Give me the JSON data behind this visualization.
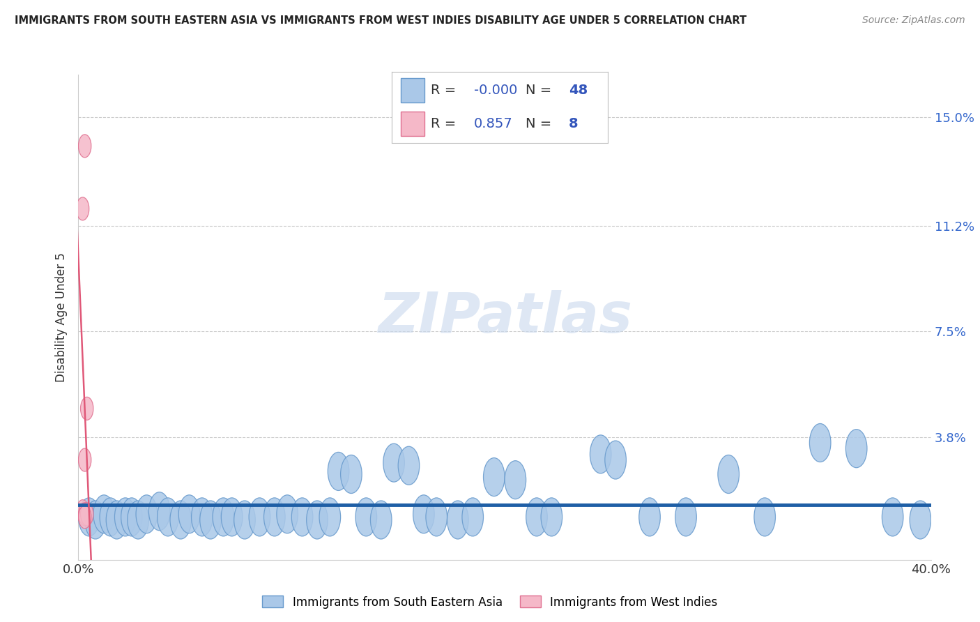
{
  "title": "IMMIGRANTS FROM SOUTH EASTERN ASIA VS IMMIGRANTS FROM WEST INDIES DISABILITY AGE UNDER 5 CORRELATION CHART",
  "source": "Source: ZipAtlas.com",
  "ylabel": "Disability Age Under 5",
  "xlim": [
    0.0,
    0.4
  ],
  "ylim": [
    -0.005,
    0.165
  ],
  "xticks": [
    0.0,
    0.1,
    0.2,
    0.3,
    0.4
  ],
  "xtick_labels": [
    "0.0%",
    "",
    "",
    "",
    "40.0%"
  ],
  "ytick_positions": [
    0.038,
    0.075,
    0.112,
    0.15
  ],
  "ytick_labels": [
    "3.8%",
    "7.5%",
    "11.2%",
    "15.0%"
  ],
  "grid_color": "#cccccc",
  "background_color": "#ffffff",
  "blue_color": "#aac8e8",
  "blue_edge_color": "#6699cc",
  "pink_color": "#f5b8c8",
  "pink_edge_color": "#e07090",
  "line_blue_color": "#1f5fa6",
  "line_pink_color": "#e05878",
  "legend_R_blue": "-0.000",
  "legend_N_blue": "48",
  "legend_R_pink": "0.857",
  "legend_N_pink": "8",
  "watermark": "ZIPatlas",
  "blue_color_legend": "#aac8e8",
  "pink_color_legend": "#f5b8c8",
  "blue_scatter": [
    [
      0.005,
      0.01
    ],
    [
      0.008,
      0.009
    ],
    [
      0.012,
      0.011
    ],
    [
      0.015,
      0.01
    ],
    [
      0.018,
      0.009
    ],
    [
      0.022,
      0.01
    ],
    [
      0.025,
      0.01
    ],
    [
      0.028,
      0.009
    ],
    [
      0.032,
      0.011
    ],
    [
      0.038,
      0.012
    ],
    [
      0.042,
      0.01
    ],
    [
      0.048,
      0.009
    ],
    [
      0.052,
      0.011
    ],
    [
      0.058,
      0.01
    ],
    [
      0.062,
      0.009
    ],
    [
      0.068,
      0.01
    ],
    [
      0.072,
      0.01
    ],
    [
      0.078,
      0.009
    ],
    [
      0.085,
      0.01
    ],
    [
      0.092,
      0.01
    ],
    [
      0.098,
      0.011
    ],
    [
      0.105,
      0.01
    ],
    [
      0.112,
      0.009
    ],
    [
      0.118,
      0.01
    ],
    [
      0.122,
      0.026
    ],
    [
      0.128,
      0.025
    ],
    [
      0.135,
      0.01
    ],
    [
      0.142,
      0.009
    ],
    [
      0.148,
      0.029
    ],
    [
      0.155,
      0.028
    ],
    [
      0.162,
      0.011
    ],
    [
      0.168,
      0.01
    ],
    [
      0.178,
      0.009
    ],
    [
      0.185,
      0.01
    ],
    [
      0.195,
      0.024
    ],
    [
      0.205,
      0.023
    ],
    [
      0.215,
      0.01
    ],
    [
      0.222,
      0.01
    ],
    [
      0.245,
      0.032
    ],
    [
      0.252,
      0.03
    ],
    [
      0.268,
      0.01
    ],
    [
      0.285,
      0.01
    ],
    [
      0.305,
      0.025
    ],
    [
      0.322,
      0.01
    ],
    [
      0.348,
      0.036
    ],
    [
      0.365,
      0.034
    ],
    [
      0.382,
      0.01
    ],
    [
      0.395,
      0.009
    ]
  ],
  "pink_scatter": [
    [
      0.003,
      0.14
    ],
    [
      0.002,
      0.118
    ],
    [
      0.004,
      0.048
    ],
    [
      0.003,
      0.03
    ],
    [
      0.002,
      0.012
    ],
    [
      0.003,
      0.011
    ],
    [
      0.004,
      0.011
    ],
    [
      0.003,
      0.01
    ]
  ]
}
